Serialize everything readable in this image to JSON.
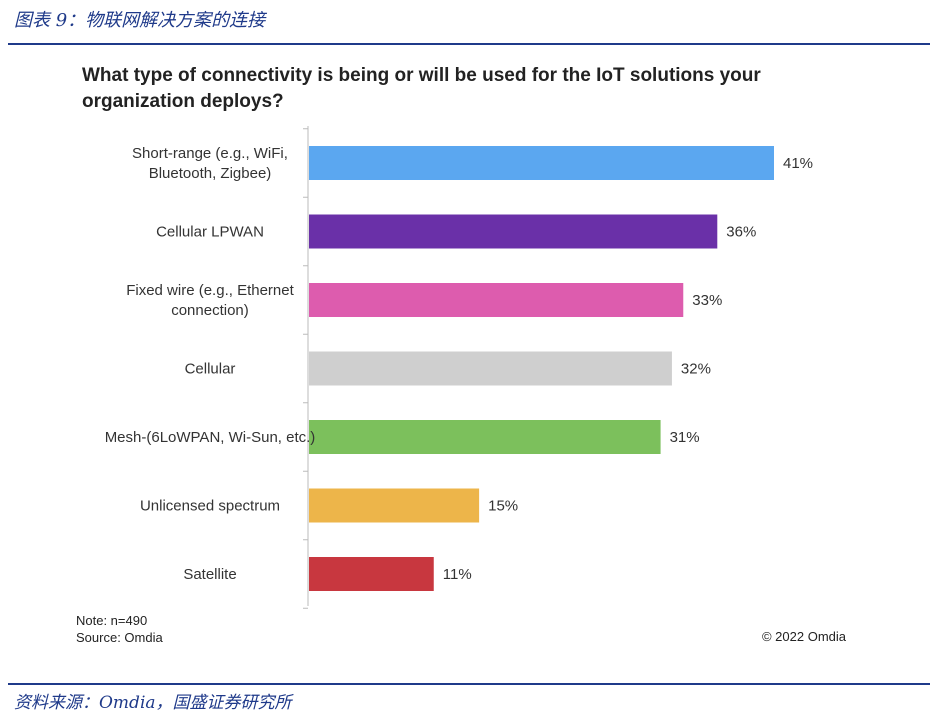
{
  "header": {
    "caption": "图表 9：物联网解决方案的连接"
  },
  "chart_data": {
    "type": "bar",
    "orientation": "horizontal",
    "title": "What type of connectivity is being or will be used for the IoT solutions your organization deploys?",
    "categories": [
      [
        "Short-range (e.g., WiFi,",
        "Bluetooth, Zigbee)"
      ],
      [
        "Cellular LPWAN"
      ],
      [
        "Fixed wire (e.g., Ethernet",
        "connection)"
      ],
      [
        "Cellular"
      ],
      [
        "Mesh-(6LoWPAN, Wi-Sun, etc.)"
      ],
      [
        "Unlicensed spectrum"
      ],
      [
        "Satellite"
      ]
    ],
    "values": [
      41,
      36,
      33,
      32,
      31,
      15,
      11
    ],
    "value_labels": [
      "41%",
      "36%",
      "33%",
      "32%",
      "31%",
      "15%",
      "11%"
    ],
    "colors": [
      "#5ba7f0",
      "#6a30a8",
      "#dd5cae",
      "#cfcfcf",
      "#7cc05c",
      "#edb54a",
      "#c8373f"
    ],
    "xlim": [
      0,
      41
    ],
    "grid": false,
    "legend": "none"
  },
  "notes": {
    "note": "Note: n=490",
    "source": "Source: Omdia",
    "copyright": "© 2022 Omdia"
  },
  "footer": {
    "source": "资料来源：Omdia，国盛证券研究所"
  }
}
